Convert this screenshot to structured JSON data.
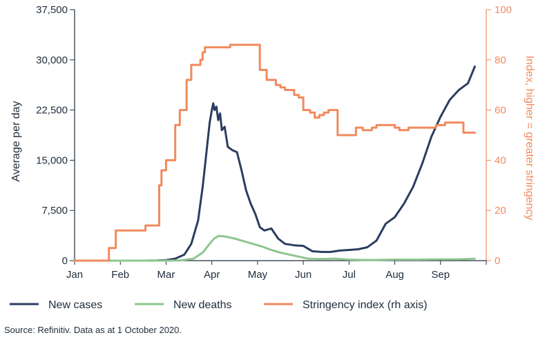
{
  "chart_data": {
    "type": "line",
    "title": "",
    "xlabel": "",
    "ylabel_left": "Average per day",
    "ylabel_right": "Index, higher = greater stringency",
    "x_tick_labels": [
      "Jan",
      "Feb",
      "Mar",
      "Apr",
      "May",
      "Jun",
      "Jul",
      "Aug",
      "Sep"
    ],
    "ylim_left": [
      0,
      37500
    ],
    "yticks_left": [
      0,
      7500,
      15000,
      22500,
      30000,
      37500
    ],
    "ytick_labels_left": [
      "0",
      "7,500",
      "15,000",
      "22,500",
      "30,000",
      "37,500"
    ],
    "ylim_right": [
      0,
      100
    ],
    "yticks_right": [
      0,
      20,
      40,
      60,
      80,
      100
    ],
    "ytick_labels_right": [
      "0",
      "20",
      "40",
      "60",
      "80",
      "100"
    ],
    "x_unit": "month index (0 = 1 Jan, 9 = 1 Oct 2020)",
    "xlim": [
      0,
      9
    ],
    "series": [
      {
        "name": "New cases",
        "axis": "left",
        "color": "#2a3d5f",
        "x": [
          0,
          1.5,
          1.8,
          2.0,
          2.2,
          2.4,
          2.55,
          2.7,
          2.8,
          2.88,
          2.95,
          3.0,
          3.03,
          3.06,
          3.1,
          3.14,
          3.18,
          3.22,
          3.28,
          3.35,
          3.45,
          3.55,
          3.65,
          3.75,
          3.85,
          3.95,
          4.05,
          4.15,
          4.3,
          4.45,
          4.6,
          4.8,
          5.0,
          5.2,
          5.4,
          5.6,
          5.8,
          6.0,
          6.2,
          6.4,
          6.6,
          6.8,
          7.0,
          7.2,
          7.4,
          7.6,
          7.8,
          8.0,
          8.2,
          8.4,
          8.6,
          8.75
        ],
        "y": [
          0,
          0,
          20,
          80,
          300,
          900,
          2500,
          6000,
          11000,
          16000,
          20500,
          22500,
          23500,
          22500,
          23000,
          21000,
          22000,
          19500,
          20000,
          17000,
          16500,
          16200,
          13500,
          10500,
          8500,
          7000,
          5000,
          4500,
          4800,
          3300,
          2500,
          2300,
          2200,
          1400,
          1300,
          1300,
          1500,
          1600,
          1700,
          2000,
          3000,
          5500,
          6500,
          8500,
          11000,
          14500,
          18500,
          21500,
          24000,
          25500,
          26500,
          29000
        ]
      },
      {
        "name": "New deaths",
        "axis": "left",
        "color": "#8dc68e",
        "x": [
          0,
          2.0,
          2.3,
          2.6,
          2.8,
          2.95,
          3.05,
          3.15,
          3.3,
          3.5,
          3.7,
          3.9,
          4.1,
          4.3,
          4.5,
          4.7,
          4.9,
          5.1,
          5.4,
          5.7,
          6.0,
          6.3,
          6.6,
          7.0,
          7.5,
          8.0,
          8.4,
          8.75
        ],
        "y": [
          0,
          0,
          30,
          300,
          1200,
          2500,
          3300,
          3700,
          3600,
          3300,
          2900,
          2500,
          2100,
          1600,
          1200,
          900,
          600,
          300,
          250,
          300,
          150,
          100,
          100,
          150,
          150,
          200,
          200,
          300
        ]
      },
      {
        "name": "Stringency index (rh axis)",
        "axis": "right",
        "color": "#f08a5d",
        "step": true,
        "x": [
          0,
          0.7,
          0.75,
          0.9,
          1.0,
          1.55,
          1.85,
          1.9,
          2.0,
          2.2,
          2.3,
          2.45,
          2.55,
          2.75,
          2.8,
          2.85,
          2.9,
          3.0,
          3.35,
          3.4,
          3.6,
          3.7,
          3.95,
          4.05,
          4.2,
          4.4,
          4.5,
          4.6,
          4.8,
          4.9,
          5.0,
          5.15,
          5.25,
          5.35,
          5.45,
          5.55,
          5.7,
          5.75,
          6.1,
          6.15,
          6.3,
          6.5,
          6.6,
          6.8,
          7.0,
          7.1,
          7.3,
          7.5,
          7.7,
          7.9,
          8.0,
          8.1,
          8.3,
          8.5,
          8.75
        ],
        "y": [
          0,
          0,
          5,
          12,
          12,
          14,
          30,
          36,
          40,
          54,
          60,
          72,
          78,
          80,
          83,
          85,
          85,
          85,
          85,
          86,
          86,
          86,
          86,
          76,
          72,
          70,
          69,
          68,
          66,
          65,
          60,
          59,
          57,
          58,
          59,
          60,
          60,
          50,
          50,
          53,
          52,
          53,
          54,
          54,
          53,
          52,
          53,
          53,
          53,
          54,
          54,
          55,
          55,
          51,
          51
        ]
      }
    ],
    "legend": {
      "position": "bottom",
      "entries": [
        {
          "label": "New cases",
          "color": "#2a3d5f"
        },
        {
          "label": "New deaths",
          "color": "#8dc68e"
        },
        {
          "label": "Stringency index (rh axis)",
          "color": "#f08a5d"
        }
      ]
    },
    "source": "Source: Refinitiv. Data as at 1 October 2020."
  }
}
